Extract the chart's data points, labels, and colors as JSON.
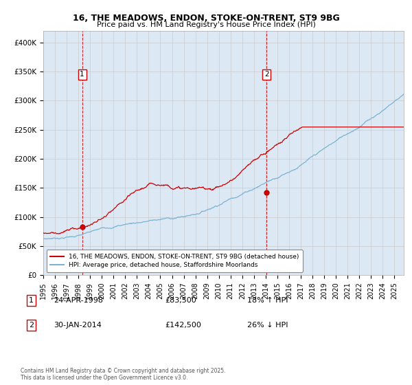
{
  "title1": "16, THE MEADOWS, ENDON, STOKE-ON-TRENT, ST9 9BG",
  "title2": "Price paid vs. HM Land Registry's House Price Index (HPI)",
  "ylabel_ticks": [
    "£0",
    "£50K",
    "£100K",
    "£150K",
    "£200K",
    "£250K",
    "£300K",
    "£350K",
    "£400K"
  ],
  "ylim": [
    0,
    420000
  ],
  "xlim_start": 1995.0,
  "xlim_end": 2025.8,
  "sale1_x": 1998.32,
  "sale1_y": 83500,
  "sale2_x": 2014.08,
  "sale2_y": 142500,
  "hpi_color": "#7ab3d4",
  "price_color": "#cc0000",
  "grid_color": "#cccccc",
  "bg_color": "#dce9f5",
  "legend_label1": "16, THE MEADOWS, ENDON, STOKE-ON-TRENT, ST9 9BG (detached house)",
  "legend_label2": "HPI: Average price, detached house, Staffordshire Moorlands",
  "table_row1": [
    "1",
    "24-APR-1998",
    "£83,500",
    "18% ↑ HPI"
  ],
  "table_row2": [
    "2",
    "30-JAN-2014",
    "£142,500",
    "26% ↓ HPI"
  ],
  "footer": "Contains HM Land Registry data © Crown copyright and database right 2025.\nThis data is licensed under the Open Government Licence v3.0.",
  "num_points": 800
}
